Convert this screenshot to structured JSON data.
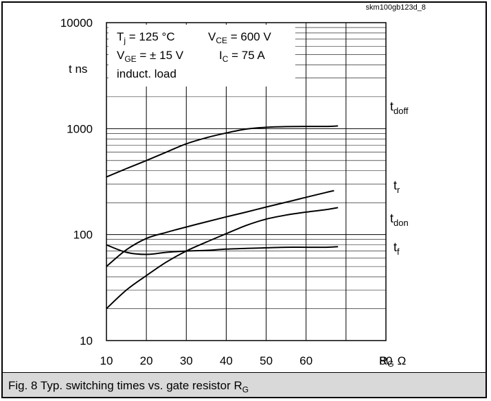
{
  "figure_id": "skm100gb123d_8",
  "caption": {
    "main": "Fig. 8 Typ. switching times vs. gate resistor R",
    "sub": "G"
  },
  "conditions": {
    "line1_a_main": "T",
    "line1_a_sub": "j",
    "line1_a_rest": " = 125 °C",
    "line1_b_main": "V",
    "line1_b_sub": "CE",
    "line1_b_rest": " = 600 V",
    "line2_a_main": "V",
    "line2_a_sub": "GE",
    "line2_a_rest": " = ± 15 V",
    "line2_b_main": "I",
    "line2_b_sub": "C",
    "line2_b_rest": " =  75 A",
    "line3": "induct. load"
  },
  "chart_data": {
    "type": "line",
    "title": "",
    "xlabel_main": "R",
    "xlabel_sub": "G",
    "xlabel_unit": "Ω",
    "ylabel": "t ns",
    "xlim": [
      10,
      80
    ],
    "ylim": [
      10,
      10000
    ],
    "yscale": "log",
    "grid": true,
    "x_ticks": [
      {
        "value": 10,
        "label": "10"
      },
      {
        "value": 20,
        "label": "20"
      },
      {
        "value": 30,
        "label": "30"
      },
      {
        "value": 40,
        "label": "40"
      },
      {
        "value": 50,
        "label": "50"
      },
      {
        "value": 60,
        "label": "60"
      },
      {
        "value": 80,
        "label": "80"
      }
    ],
    "y_ticks": [
      {
        "value": 10,
        "label": "10"
      },
      {
        "value": 100,
        "label": "100"
      },
      {
        "value": 1000,
        "label": "1000"
      },
      {
        "value": 10000,
        "label": "10000"
      }
    ],
    "series": [
      {
        "name": "t",
        "name_sub": "doff",
        "x": [
          10,
          15,
          20,
          25,
          30,
          35,
          40,
          45,
          50,
          55,
          60,
          65,
          68
        ],
        "y": [
          350,
          420,
          500,
          600,
          720,
          820,
          910,
          990,
          1030,
          1045,
          1050,
          1050,
          1060
        ]
      },
      {
        "name": "t",
        "name_sub": "r",
        "x": [
          10,
          15,
          20,
          25,
          30,
          35,
          40,
          45,
          50,
          55,
          60,
          65,
          67
        ],
        "y": [
          50,
          72,
          92,
          105,
          118,
          132,
          147,
          163,
          182,
          202,
          225,
          250,
          260
        ]
      },
      {
        "name": "t",
        "name_sub": "don",
        "x": [
          10,
          15,
          20,
          25,
          30,
          35,
          40,
          45,
          50,
          55,
          60,
          65,
          68
        ],
        "y": [
          20,
          30,
          41,
          55,
          70,
          85,
          102,
          122,
          140,
          153,
          163,
          172,
          180
        ]
      },
      {
        "name": "t",
        "name_sub": "f",
        "x": [
          10,
          15,
          20,
          25,
          30,
          35,
          40,
          45,
          50,
          55,
          60,
          65,
          68
        ],
        "y": [
          80,
          68,
          65,
          68,
          70,
          71,
          73,
          74,
          75,
          76,
          76,
          76,
          77
        ]
      }
    ]
  }
}
